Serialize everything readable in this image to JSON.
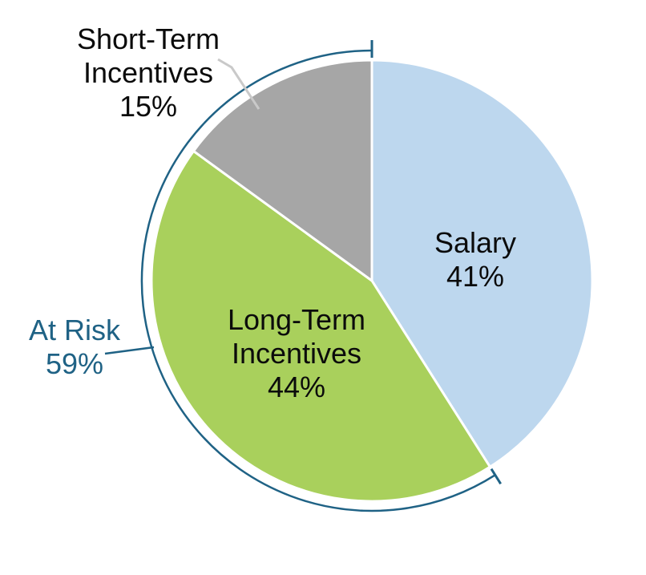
{
  "chart_data": {
    "type": "pie",
    "unit": "%",
    "start_angle_deg": 0,
    "direction": "clockwise",
    "slices": [
      {
        "label": "Salary",
        "value": 41,
        "color": "#BDD7EE"
      },
      {
        "label": "Long-Term Incentives",
        "value": 44,
        "color": "#A9D05C"
      },
      {
        "label": "Short-Term Incentives",
        "value": 15,
        "color": "#A6A6A6"
      }
    ],
    "annotation_bracket": {
      "label": "At Risk",
      "value": 59,
      "covers": [
        "Long-Term Incentives",
        "Short-Term Incentives"
      ],
      "color": "#1F6285"
    },
    "separator_color": "#FFFFFF",
    "leader_line_colors": {
      "short_term_incentives": "#C9C9C9",
      "at_risk": "#1F6285"
    },
    "background": "#FFFFFF",
    "legend": "none",
    "labels_on_slices": true
  },
  "labels": {
    "short_term": {
      "line1": "Short-Term",
      "line2": "Incentives",
      "line3": "15%"
    },
    "salary": {
      "line1": "Salary",
      "line2": "41%"
    },
    "long_term": {
      "line1": "Long-Term",
      "line2": "Incentives",
      "line3": "44%"
    },
    "at_risk": {
      "line1": "At Risk",
      "line2": "59%"
    }
  }
}
